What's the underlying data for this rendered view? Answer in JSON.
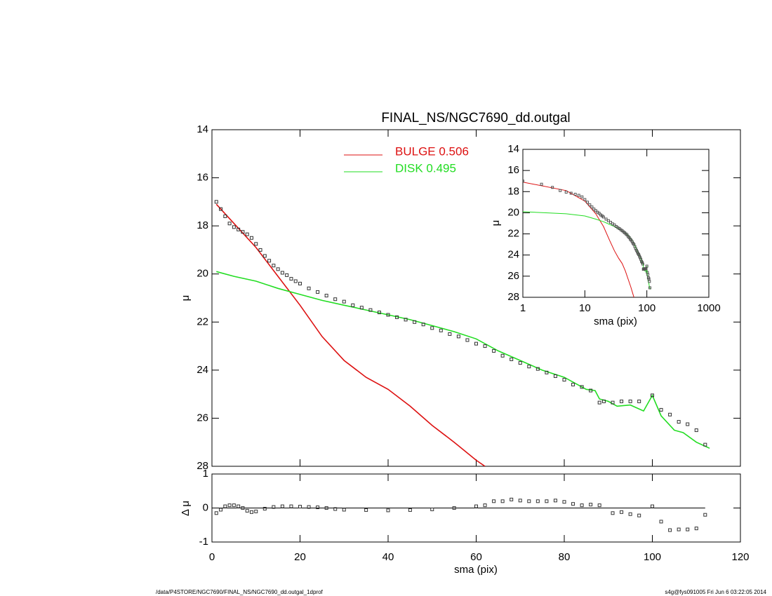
{
  "chart_data": [
    {
      "type": "line",
      "title": "FINAL_NS/NGC7690_dd.outgal",
      "ylabel": "μ",
      "xlim": [
        0,
        120
      ],
      "ylim": [
        28,
        14
      ],
      "yticks": [
        14,
        16,
        18,
        20,
        22,
        24,
        26,
        28
      ],
      "marker_color": "#333333",
      "x": [
        1,
        2,
        3,
        4,
        5,
        6,
        7,
        8,
        9,
        10,
        11,
        12,
        13,
        14,
        15,
        16,
        17,
        18,
        19,
        20,
        22,
        24,
        26,
        28,
        30,
        32,
        34,
        36,
        38,
        40,
        42,
        44,
        46,
        48,
        50,
        52,
        54,
        56,
        58,
        60,
        62,
        64,
        66,
        68,
        70,
        72,
        74,
        76,
        78,
        80,
        82,
        84,
        86,
        88,
        89,
        91,
        93,
        95,
        97,
        100,
        102,
        104,
        106,
        108,
        110,
        112
      ],
      "values": [
        17.0,
        17.3,
        17.6,
        17.9,
        18.05,
        18.15,
        18.25,
        18.35,
        18.5,
        18.75,
        19.0,
        19.25,
        19.45,
        19.65,
        19.8,
        19.95,
        20.05,
        20.2,
        20.3,
        20.4,
        20.6,
        20.75,
        20.9,
        21.05,
        21.15,
        21.3,
        21.4,
        21.5,
        21.6,
        21.7,
        21.8,
        21.9,
        22.0,
        22.1,
        22.25,
        22.35,
        22.5,
        22.6,
        22.75,
        22.9,
        23.0,
        23.2,
        23.4,
        23.55,
        23.7,
        23.85,
        23.95,
        24.1,
        24.25,
        24.4,
        24.6,
        24.7,
        24.85,
        25.35,
        25.3,
        25.35,
        25.3,
        25.3,
        25.3,
        25.05,
        25.65,
        25.85,
        26.15,
        26.25,
        26.5,
        27.1
      ],
      "series": [
        {
          "name": "BULGE  0.506",
          "color": "#dd1111",
          "x": [
            1,
            5,
            10,
            15,
            20,
            25,
            30,
            35,
            40,
            45,
            50,
            55,
            60,
            62
          ],
          "values": [
            17.1,
            17.9,
            18.9,
            20.1,
            21.3,
            22.6,
            23.6,
            24.3,
            24.8,
            25.5,
            26.3,
            27.0,
            27.75,
            28.0
          ]
        },
        {
          "name": "DISK  0.495",
          "color": "#22dd22",
          "x": [
            1,
            5,
            10,
            15,
            20,
            25,
            30,
            35,
            40,
            45,
            50,
            55,
            60,
            65,
            70,
            75,
            80,
            85,
            87,
            88,
            90,
            92,
            95,
            98,
            100,
            102,
            105,
            107,
            110,
            113
          ],
          "values": [
            19.9,
            20.1,
            20.3,
            20.6,
            20.85,
            21.1,
            21.3,
            21.5,
            21.7,
            21.9,
            22.15,
            22.4,
            22.7,
            23.2,
            23.6,
            24.0,
            24.3,
            24.8,
            24.85,
            25.2,
            25.3,
            25.5,
            25.45,
            25.7,
            25.05,
            25.9,
            26.5,
            26.6,
            27.0,
            27.25
          ]
        }
      ]
    },
    {
      "type": "scatter",
      "xlabel": "sma (pix)",
      "ylabel": "Δ μ",
      "xlim": [
        0,
        120
      ],
      "ylim": [
        -1,
        1
      ],
      "xticks": [
        0,
        20,
        40,
        60,
        80,
        100,
        120
      ],
      "yticks": [
        -1,
        0,
        1
      ],
      "x": [
        1,
        2,
        3,
        4,
        5,
        6,
        7,
        8,
        9,
        10,
        12,
        14,
        16,
        18,
        20,
        22,
        24,
        26,
        28,
        30,
        35,
        40,
        45,
        50,
        55,
        60,
        62,
        64,
        66,
        68,
        70,
        72,
        74,
        76,
        78,
        80,
        82,
        84,
        86,
        88,
        91,
        93,
        95,
        97,
        100,
        102,
        104,
        106,
        108,
        110,
        112
      ],
      "values": [
        -0.15,
        -0.05,
        0.05,
        0.08,
        0.08,
        0.05,
        0,
        -0.08,
        -0.12,
        -0.1,
        -0.02,
        0.03,
        0.05,
        0.05,
        0.04,
        0.03,
        0.02,
        0,
        -0.03,
        -0.05,
        -0.06,
        -0.07,
        -0.06,
        -0.04,
        0,
        0.05,
        0.08,
        0.2,
        0.2,
        0.25,
        0.22,
        0.2,
        0.2,
        0.2,
        0.22,
        0.18,
        0.12,
        0.08,
        0.1,
        0.08,
        -0.15,
        -0.12,
        -0.18,
        -0.22,
        0.05,
        -0.4,
        -0.65,
        -0.63,
        -0.63,
        -0.6,
        -0.2
      ]
    },
    {
      "type": "inset",
      "xlabel": "sma (pix)",
      "ylabel": "μ",
      "xscale": "log",
      "xlim": [
        1,
        1000
      ],
      "ylim": [
        28,
        14
      ],
      "xticks": [
        1,
        10,
        100,
        1000
      ],
      "yticks": [
        14,
        16,
        18,
        20,
        22,
        24,
        26,
        28
      ]
    }
  ],
  "footer": {
    "left": "/data/P4STORE/NGC7690/FINAL_NS/NGC7690_dd.outgal_1dprof",
    "right": "s4g@fys091005  Fri Jun  6 03:22:05 2014"
  }
}
